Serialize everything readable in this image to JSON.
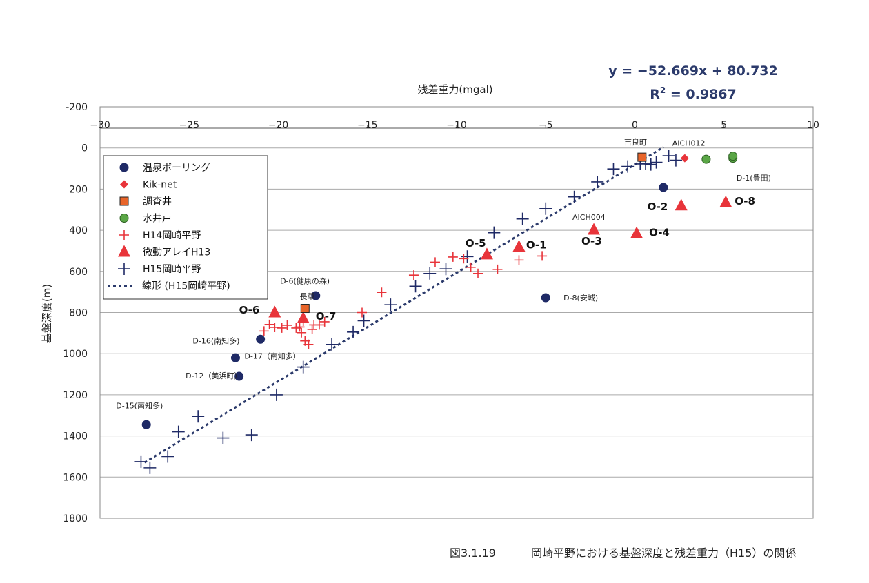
{
  "chart_data": {
    "type": "scatter",
    "xlabel": "残差重力(mgal)",
    "ylabel": "基盤深度(m)",
    "xlim": [
      -30,
      10
    ],
    "ylim": [
      -200,
      1800
    ],
    "y_inverted": true,
    "x_axis_position": "top",
    "x_ticks": [
      -30,
      -25,
      -20,
      -15,
      -10,
      -5,
      0,
      5,
      10
    ],
    "y_ticks": [
      -200,
      0,
      200,
      400,
      600,
      800,
      1000,
      1200,
      1400,
      1600,
      1800
    ],
    "grid": "horizontal",
    "legend_position": "left",
    "equation": {
      "line1": "y = −52.669x + 80.732",
      "r2_prefix": "R",
      "r2_sup": "2",
      "r2_value": " = 0.9867"
    },
    "fit_line": {
      "slope": -52.669,
      "intercept": 80.732,
      "x_range": [
        -27.5,
        1.6
      ],
      "color": "#2b3a6b"
    },
    "series": [
      {
        "name": "温泉ボーリング",
        "marker": "circle",
        "color": "#1f2a66",
        "points": [
          [
            -27.4,
            1345
          ],
          [
            -22.2,
            1110
          ],
          [
            -22.4,
            1020
          ],
          [
            -21.0,
            930
          ],
          [
            -17.9,
            718
          ],
          [
            -5.0,
            728
          ],
          [
            1.6,
            192
          ]
        ]
      },
      {
        "name": "Kik-net",
        "marker": "diamond",
        "color": "#e8343a",
        "points": [
          [
            2.8,
            50
          ]
        ]
      },
      {
        "name": "調査井",
        "marker": "square",
        "color": "#e8652a",
        "points": [
          [
            -18.5,
            780
          ],
          [
            0.4,
            45
          ]
        ]
      },
      {
        "name": "水井戸",
        "marker": "circle",
        "color": "#5aa646",
        "points": [
          [
            4.0,
            55
          ],
          [
            5.5,
            50
          ],
          [
            5.5,
            40
          ]
        ]
      },
      {
        "name": "H14岡崎平野",
        "marker": "plus",
        "color": "#e8343a",
        "points": [
          [
            -20.8,
            890
          ],
          [
            -20.5,
            858
          ],
          [
            -20.2,
            872
          ],
          [
            -19.8,
            875
          ],
          [
            -19.5,
            862
          ],
          [
            -19.0,
            875
          ],
          [
            -18.8,
            870
          ],
          [
            -18.6,
            842
          ],
          [
            -18.7,
            898
          ],
          [
            -18.5,
            938
          ],
          [
            -18.3,
            955
          ],
          [
            -18.1,
            882
          ],
          [
            -18.0,
            860
          ],
          [
            -17.7,
            860
          ],
          [
            -17.4,
            845
          ],
          [
            -15.3,
            800
          ],
          [
            -14.2,
            702
          ],
          [
            -12.4,
            618
          ],
          [
            -11.2,
            555
          ],
          [
            -10.2,
            530
          ],
          [
            -9.6,
            538
          ],
          [
            -9.2,
            580
          ],
          [
            -8.8,
            610
          ],
          [
            -7.7,
            590
          ],
          [
            -6.5,
            545
          ],
          [
            -5.2,
            525
          ]
        ]
      },
      {
        "name": "微動アレイH13",
        "marker": "triangle",
        "color": "#e8343a",
        "points": [
          [
            -20.2,
            800
          ],
          [
            -18.6,
            828
          ],
          [
            -8.3,
            518
          ],
          [
            -6.5,
            480
          ],
          [
            -2.3,
            398
          ],
          [
            0.1,
            415
          ],
          [
            2.6,
            280
          ],
          [
            5.1,
            265
          ]
        ]
      },
      {
        "name": "H15岡崎平野",
        "marker": "plus",
        "color": "#1f2a66",
        "points": [
          [
            -27.7,
            1525
          ],
          [
            -27.2,
            1555
          ],
          [
            -26.2,
            1500
          ],
          [
            -25.6,
            1380
          ],
          [
            -24.5,
            1305
          ],
          [
            -23.1,
            1410
          ],
          [
            -21.5,
            1395
          ],
          [
            -20.1,
            1200
          ],
          [
            -18.6,
            1065
          ],
          [
            -17.0,
            955
          ],
          [
            -15.8,
            895
          ],
          [
            -15.2,
            840
          ],
          [
            -13.7,
            762
          ],
          [
            -12.3,
            672
          ],
          [
            -11.5,
            610
          ],
          [
            -10.6,
            588
          ],
          [
            -9.4,
            528
          ],
          [
            -7.9,
            412
          ],
          [
            -6.3,
            345
          ],
          [
            -5.0,
            295
          ],
          [
            -3.4,
            238
          ],
          [
            -2.1,
            165
          ],
          [
            -1.2,
            102
          ],
          [
            -0.4,
            90
          ],
          [
            0.3,
            78
          ],
          [
            0.6,
            75
          ],
          [
            0.9,
            80
          ],
          [
            1.2,
            70
          ],
          [
            1.9,
            38
          ],
          [
            2.3,
            60
          ]
        ]
      }
    ],
    "point_labels": [
      {
        "text": "D-15(南知多)",
        "x": -29.1,
        "y": 1265,
        "size": "small"
      },
      {
        "text": "D-12（美浜町）",
        "x": -25.2,
        "y": 1120,
        "size": "small"
      },
      {
        "text": "D-17（南知多）",
        "x": -21.9,
        "y": 1025,
        "size": "small"
      },
      {
        "text": "D-16(南知多)",
        "x": -24.8,
        "y": 950,
        "size": "small"
      },
      {
        "text": "D-6(健康の森)",
        "x": -19.9,
        "y": 660,
        "size": "small"
      },
      {
        "text": "長草",
        "x": -18.8,
        "y": 735,
        "size": "small"
      },
      {
        "text": "D-8(安城)",
        "x": -4.0,
        "y": 742,
        "size": "small"
      },
      {
        "text": "D-1(豊田)",
        "x": 5.7,
        "y": 158,
        "size": "small"
      },
      {
        "text": "吉良町",
        "x": -0.6,
        "y": -15,
        "size": "small"
      },
      {
        "text": "AICH012",
        "x": 2.1,
        "y": -10,
        "size": "small"
      },
      {
        "text": "AICH004",
        "x": -3.5,
        "y": 350,
        "size": "small"
      },
      {
        "text": "O-6",
        "x": -22.2,
        "y": 805,
        "size": "big"
      },
      {
        "text": "O-7",
        "x": -17.9,
        "y": 835,
        "size": "big"
      },
      {
        "text": "O-5",
        "x": -9.5,
        "y": 480,
        "size": "big"
      },
      {
        "text": "O-1",
        "x": -6.1,
        "y": 488,
        "size": "big"
      },
      {
        "text": "O-3",
        "x": -3.0,
        "y": 470,
        "size": "big"
      },
      {
        "text": "O-4",
        "x": 0.8,
        "y": 428,
        "size": "big"
      },
      {
        "text": "O-2",
        "x": 0.7,
        "y": 303,
        "size": "big"
      },
      {
        "text": "O-8",
        "x": 5.6,
        "y": 275,
        "size": "big"
      }
    ],
    "legend_entries": [
      {
        "label": "温泉ボーリング",
        "series": 0
      },
      {
        "label": "Kik-net",
        "series": 1
      },
      {
        "label": "調査井",
        "series": 2
      },
      {
        "label": "水井戸",
        "series": 3
      },
      {
        "label": "H14岡崎平野",
        "series": 4
      },
      {
        "label": "微動アレイH13",
        "series": 5
      },
      {
        "label": "H15岡崎平野",
        "series": 6
      },
      {
        "label": "線形 (H15岡崎平野)",
        "series": "fit"
      }
    ]
  },
  "caption": {
    "figure_no": "図3.1.19",
    "text": "岡崎平野における基盤深度と残差重力（H15）の関係"
  }
}
